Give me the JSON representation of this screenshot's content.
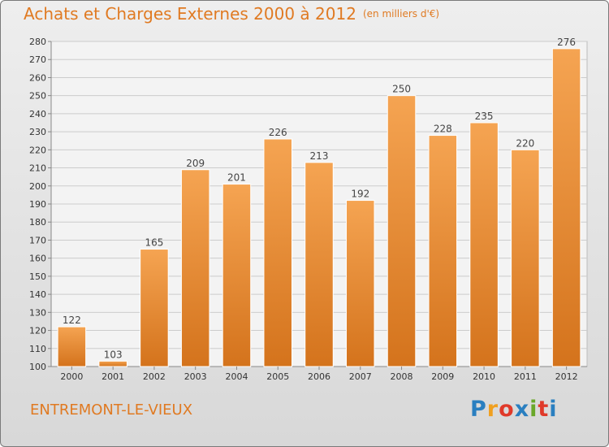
{
  "title": "Achats et Charges Externes 2000 à 2012",
  "unit_note": "(en milliers d'€)",
  "commune": "ENTREMONT-LE-VIEUX",
  "logo": {
    "letters": [
      "P",
      "r",
      "o",
      "x",
      "i",
      "t",
      "i"
    ],
    "colors": [
      "#2a7fc0",
      "#f0a020",
      "#e03a2a",
      "#2a7fc0",
      "#6aa82a",
      "#e03a2a",
      "#2a7fc0"
    ]
  },
  "colors": {
    "bar_light": "#f5a452",
    "bar_dark": "#d4731c",
    "accent": "#e07a22"
  },
  "chart_data": {
    "type": "bar",
    "categories": [
      "2000",
      "2001",
      "2002",
      "2003",
      "2004",
      "2005",
      "2006",
      "2007",
      "2008",
      "2009",
      "2010",
      "2011",
      "2012"
    ],
    "values": [
      122,
      103,
      165,
      209,
      201,
      226,
      213,
      192,
      250,
      228,
      235,
      220,
      276
    ],
    "title": "Achats et Charges Externes 2000 à 2012",
    "xlabel": "",
    "ylabel": "",
    "ylim": [
      100,
      280
    ],
    "yticks": [
      100,
      110,
      120,
      130,
      140,
      150,
      160,
      170,
      180,
      190,
      200,
      210,
      220,
      230,
      240,
      250,
      260,
      270,
      280
    ],
    "grid": true,
    "data_labels": true
  }
}
